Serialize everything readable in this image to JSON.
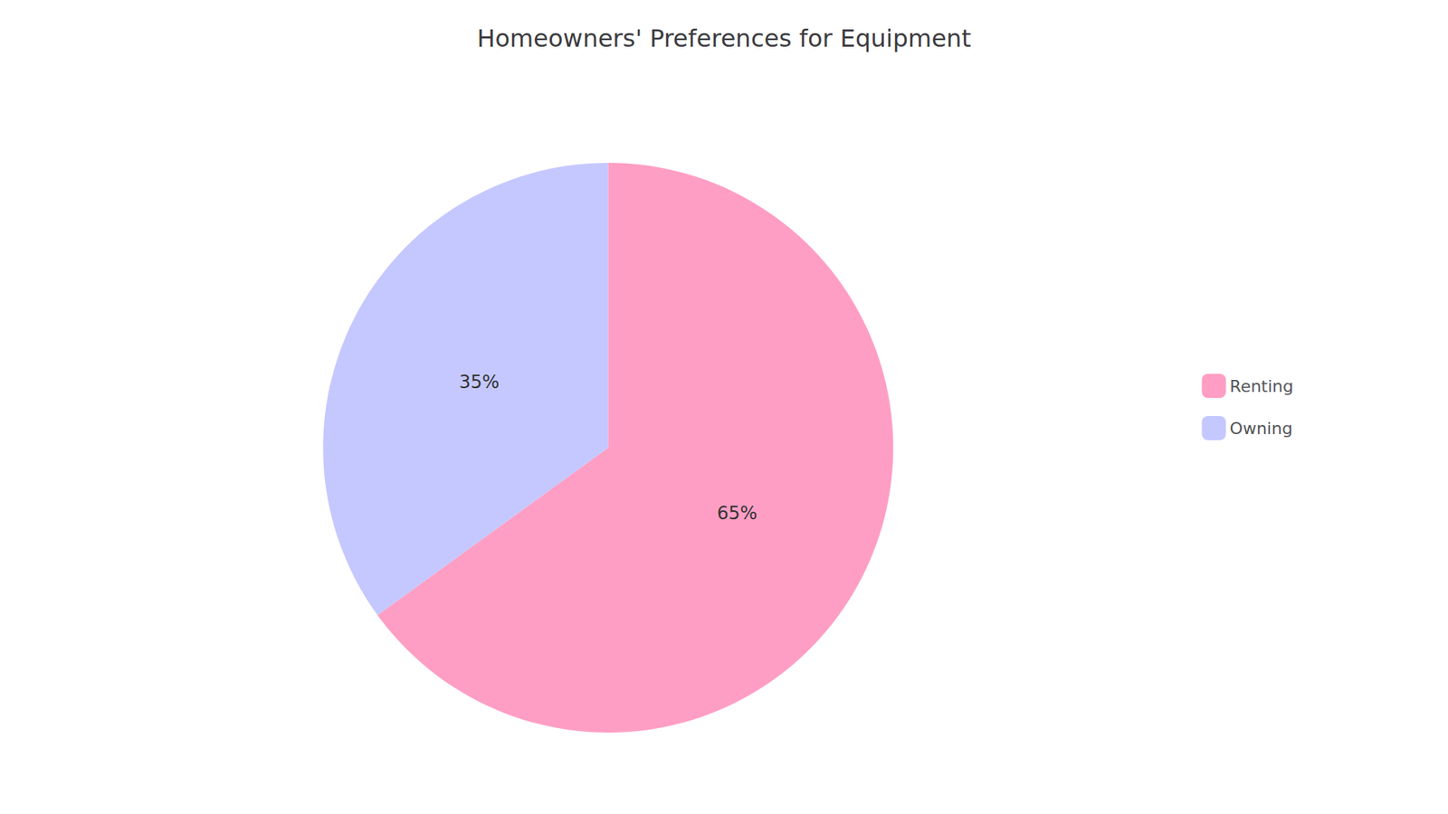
{
  "chart_data": {
    "type": "pie",
    "title": "Homeowners' Preferences for Equipment",
    "categories": [
      "Renting",
      "Owning"
    ],
    "values": [
      65,
      35
    ],
    "value_labels": [
      "65%",
      "35%"
    ],
    "colors": [
      "#FF9EC4",
      "#C5C8FF"
    ],
    "data_labels": true,
    "legend": "right"
  }
}
